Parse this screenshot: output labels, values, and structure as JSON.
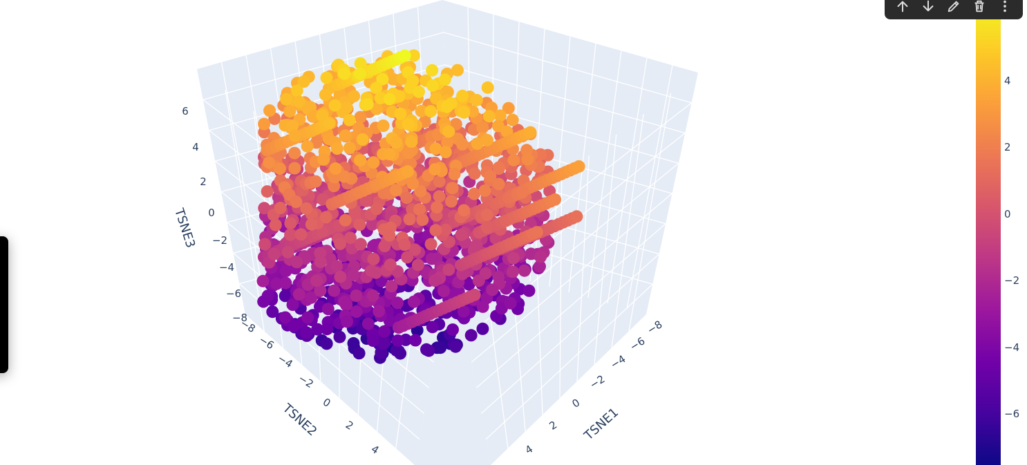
{
  "chart_data": {
    "type": "scatter3d",
    "colorscale": "plasma",
    "marker_color_range": [
      -7.4,
      5.6
    ],
    "x_axis": {
      "title": "TSNE1",
      "ticks": [
        "−8",
        "−6",
        "−4",
        "−2",
        "0",
        "2",
        "4"
      ]
    },
    "y_axis": {
      "title": "TSNE2",
      "ticks": [
        "−8",
        "−6",
        "−4",
        "−2",
        "0",
        "2",
        "4"
      ]
    },
    "z_axis": {
      "title": "TSNE3",
      "ticks": [
        "6",
        "4",
        "2",
        "0",
        "−2",
        "−4",
        "−6",
        "−8"
      ]
    },
    "colorbar": {
      "ticks": [
        {
          "value": 4,
          "label": "4"
        },
        {
          "value": 2,
          "label": "2"
        },
        {
          "value": 0,
          "label": "0"
        },
        {
          "value": -2,
          "label": "−2"
        },
        {
          "value": -4,
          "label": "−4"
        },
        {
          "value": -6,
          "label": "−6"
        }
      ]
    },
    "cloud": {
      "x_range": [
        -8,
        5
      ],
      "y_range": [
        -8,
        5
      ],
      "z_range": [
        -7.4,
        5.6
      ],
      "approx_points": 1400
    }
  },
  "colors": {
    "scene_bg": "#e5ecf6",
    "grid": "#ffffff",
    "text": "#2a3f5f",
    "toolbar_bg": "#2b2b2b",
    "toolbar_icon": "#dddddd"
  },
  "toolbar": {
    "icons": [
      "arrow-up-icon",
      "arrow-down-icon",
      "edit-pencil-icon",
      "trash-icon",
      "more-vertical-icon"
    ]
  }
}
